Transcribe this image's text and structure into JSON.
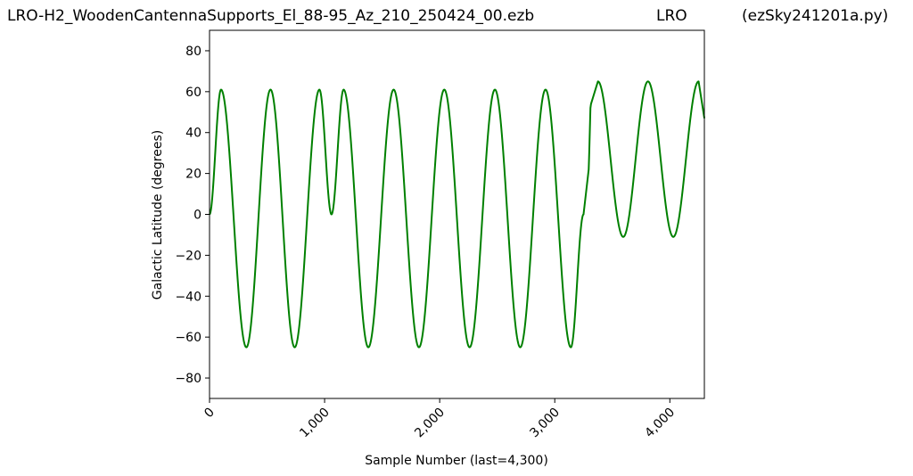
{
  "header": {
    "left": "LRO-H2_WoodenCantennaSupports_El_88-95_Az_210_250424_00.ezb",
    "middle": "LRO",
    "right": "(ezSky241201a.py)"
  },
  "chart_data": {
    "type": "line",
    "title": "",
    "xlabel": "Sample Number (last=4,300)",
    "ylabel": "Galactic Latitude (degrees)",
    "xlim": [
      0,
      4300
    ],
    "ylim": [
      -90,
      90
    ],
    "xticks": [
      0,
      1000,
      2000,
      3000,
      4000
    ],
    "xtick_labels": [
      "0",
      "1,000",
      "2,000",
      "3,000",
      "4,000"
    ],
    "yticks": [
      -80,
      -60,
      -40,
      -20,
      0,
      20,
      40,
      60,
      80
    ],
    "ytick_labels": [
      "−80",
      "−60",
      "−40",
      "−20",
      "0",
      "20",
      "40",
      "60",
      "80"
    ],
    "grid": false,
    "series": [
      {
        "color": "#008000",
        "x": [
          0,
          100,
          320,
          530,
          740,
          955,
          1060,
          1165,
          1380,
          1600,
          1820,
          2040,
          2260,
          2480,
          2700,
          2920,
          3140,
          3250,
          3295,
          3300,
          3310,
          3315,
          3375,
          3595,
          3810,
          4030,
          4250,
          4300
        ],
        "y": [
          0,
          61,
          -65,
          61,
          -65,
          61,
          0,
          61,
          -65,
          61,
          -65,
          61,
          -65,
          61,
          -65,
          61,
          -65,
          0,
          22,
          31,
          52,
          54,
          65,
          -11,
          65,
          -11,
          65,
          47
        ]
      }
    ]
  }
}
